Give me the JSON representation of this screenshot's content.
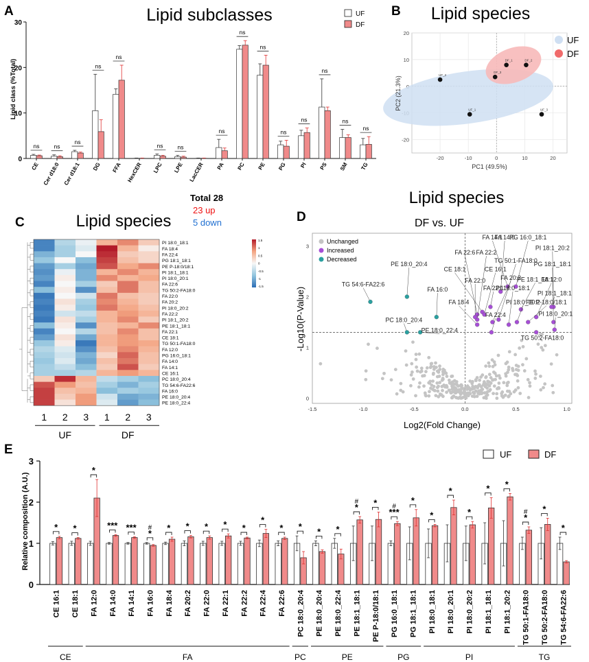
{
  "colors": {
    "uf_fill": "#ffffff",
    "df_fill": "#f08a8a",
    "df_err": "#e03030",
    "axis": "#111111",
    "uf_ellipse": "#cfdff2",
    "df_ellipse": "#f7b9b9",
    "up": "#ee1111",
    "down": "#1f6fd1",
    "unchanged": "#c4c4c4",
    "increased": "#a64fd6",
    "decreased": "#2aa0a0",
    "heat_lo": "#2c6db5",
    "heat_hi": "#b31b2a"
  },
  "panelA": {
    "letter": "A",
    "chart_data": {
      "type": "bar",
      "title": "Lipid subclasses",
      "ylabel": "Lipid class (%Total)",
      "ylim": [
        0,
        30
      ],
      "yticks": [
        0,
        10,
        20,
        30
      ],
      "categories": [
        "CE",
        "Cer d18:0",
        "Cer d18:1",
        "DG",
        "FFA",
        "HexCER",
        "LPC",
        "LPE",
        "LacCER",
        "PA",
        "PC",
        "PE",
        "PG",
        "PI",
        "PS",
        "SM",
        "TG"
      ],
      "series": [
        {
          "name": "UF",
          "values": [
            0.7,
            0.5,
            1.5,
            10.5,
            14.1,
            0.05,
            0.7,
            0.4,
            0.05,
            2.4,
            24.0,
            18.3,
            3.0,
            5.0,
            11.3,
            4.6,
            3.0
          ],
          "errors": [
            0.2,
            0.3,
            0.3,
            8.0,
            1.2,
            0.05,
            0.3,
            0.3,
            0.05,
            1.8,
            0.8,
            2.5,
            0.8,
            1.2,
            6.2,
            1.8,
            1.4
          ]
        },
        {
          "name": "DF",
          "values": [
            0.6,
            0.4,
            1.2,
            5.9,
            17.2,
            0.05,
            0.5,
            0.3,
            0.05,
            1.7,
            24.9,
            20.5,
            2.7,
            5.7,
            10.5,
            4.6,
            3.1
          ],
          "errors": [
            0.15,
            0.2,
            0.2,
            2.6,
            3.3,
            0.05,
            0.2,
            0.2,
            0.05,
            0.6,
            1.0,
            2.2,
            1.3,
            1.0,
            0.8,
            0.6,
            1.7
          ]
        }
      ],
      "annotations": [
        "ns",
        "ns",
        "ns",
        "ns",
        "ns",
        "",
        "ns",
        "ns",
        "",
        "ns",
        "ns",
        "ns",
        "ns",
        "ns",
        "ns",
        "ns",
        "ns"
      ],
      "legend": [
        "UF",
        "DF"
      ]
    }
  },
  "panelB": {
    "letter": "B",
    "chart_data": {
      "type": "scatter",
      "title": "Lipid species",
      "xlabel": "PC1 (49.5%)",
      "ylabel": "PC2 (21.3%)",
      "xlim": [
        -30,
        25
      ],
      "ylim": [
        -25,
        20
      ],
      "xticks": [
        -20,
        -10,
        0,
        10,
        20
      ],
      "yticks": [
        -20,
        -10,
        0,
        10,
        20
      ],
      "series": [
        {
          "name": "UF",
          "points": [
            {
              "x": -20,
              "y": 2.5,
              "label": "UF_2"
            },
            {
              "x": -9.5,
              "y": -10.5,
              "label": "UF_1"
            },
            {
              "x": 16,
              "y": -10.5,
              "label": "UF_3"
            }
          ]
        },
        {
          "name": "DF",
          "points": [
            {
              "x": -0.5,
              "y": 3.5,
              "label": "DF_3"
            },
            {
              "x": 3.5,
              "y": 8,
              "label": "DF_1"
            },
            {
              "x": 10.5,
              "y": 8,
              "label": "DF_2"
            }
          ]
        }
      ],
      "legend": [
        "UF",
        "DF"
      ]
    }
  },
  "panelC": {
    "letter": "C",
    "title": "Lipid species",
    "total": "Total 28",
    "up": "23 up",
    "down": "5 down",
    "chart_data": {
      "type": "heatmap",
      "columns": [
        "1",
        "2",
        "3",
        "1",
        "2",
        "3"
      ],
      "groups": [
        "UF",
        "DF"
      ],
      "colorbar_ticks": [
        "1.5",
        "1",
        "0.5",
        "0",
        "-0.5",
        "-1",
        "-1.5"
      ],
      "rows": [
        "PI 18:0_18:1",
        "FA 18:4",
        "FA 22:4",
        "PG 18:1_18:1",
        "PE P-18:0/18:1",
        "PI 18:1_18:1",
        "PI 18:0_20:1",
        "FA 22:6",
        "TG 50:2-FA18:0",
        "FA 22:0",
        "FA 20:2",
        "PI 18:0_20:2",
        "FA 22:2",
        "PI 18:1_20:2",
        "PE 18:1_18:1",
        "FA 22:1",
        "CE 18:1",
        "TG 50:1-FA18:0",
        "FA 12:0",
        "PG 16:0_18:1",
        "FA 14:0",
        "FA 14:1",
        "CE 16:1",
        "PC 18:0_20:4",
        "TG 54:6-FA22:6",
        "FA 16:0",
        "PE 18:0_20:4",
        "PE 18:0_22:4"
      ],
      "values": [
        [
          -1.3,
          -0.5,
          -0.1,
          0.6,
          0.9,
          0.4
        ],
        [
          -1.3,
          -0.6,
          -0.2,
          1.5,
          0.6,
          0.1
        ],
        [
          -0.9,
          -0.6,
          0.0,
          1.4,
          0.4,
          0.3
        ],
        [
          -0.7,
          0.0,
          -0.8,
          1.3,
          0.5,
          0.3
        ],
        [
          -1.1,
          -0.6,
          -1.0,
          1.2,
          0.7,
          0.9
        ],
        [
          -1.2,
          -0.1,
          -0.9,
          0.6,
          0.9,
          0.6
        ],
        [
          -1.1,
          0.1,
          -0.9,
          0.9,
          0.6,
          0.7
        ],
        [
          -1.3,
          0.0,
          -0.6,
          0.4,
          1.0,
          0.5
        ],
        [
          -0.8,
          0.1,
          -1.2,
          0.5,
          1.0,
          0.5
        ],
        [
          -1.4,
          0.0,
          -0.3,
          1.0,
          0.5,
          0.4
        ],
        [
          -1.3,
          0.2,
          -0.6,
          0.9,
          0.6,
          0.4
        ],
        [
          -1.4,
          0.1,
          -0.7,
          1.0,
          0.7,
          0.5
        ],
        [
          -1.3,
          -0.3,
          -0.4,
          0.6,
          0.8,
          0.6
        ],
        [
          -1.4,
          0.2,
          -0.6,
          0.6,
          0.9,
          0.4
        ],
        [
          -0.8,
          0.1,
          -1.2,
          0.5,
          0.6,
          0.9
        ],
        [
          -1.3,
          0.0,
          -0.5,
          0.5,
          0.9,
          0.5
        ],
        [
          -1.1,
          0.2,
          -1.0,
          0.6,
          0.8,
          0.5
        ],
        [
          -0.7,
          0.1,
          -1.4,
          0.6,
          0.8,
          0.7
        ],
        [
          -0.5,
          -0.2,
          -1.2,
          0.5,
          0.9,
          0.6
        ],
        [
          -0.6,
          -0.3,
          -0.9,
          0.3,
          1.1,
          0.5
        ],
        [
          -0.7,
          -0.2,
          -1.0,
          0.5,
          1.0,
          0.5
        ],
        [
          -0.6,
          -0.4,
          -0.8,
          0.4,
          1.2,
          0.4
        ],
        [
          -0.6,
          -0.6,
          -0.5,
          0.6,
          0.8,
          0.6
        ],
        [
          0.4,
          1.4,
          0.6,
          -0.4,
          -0.6,
          -0.8
        ],
        [
          1.2,
          0.8,
          0.5,
          -0.6,
          -0.9,
          -0.6
        ],
        [
          1.3,
          0.5,
          0.6,
          -0.8,
          -0.6,
          -0.7
        ],
        [
          1.3,
          0.4,
          0.8,
          -0.3,
          -1.0,
          -0.9
        ],
        [
          1.3,
          0.2,
          0.8,
          -0.2,
          -1.1,
          -0.8
        ]
      ]
    }
  },
  "panelD": {
    "letter": "D",
    "title": "Lipid species",
    "subtitle": "DF vs. UF",
    "chart_data": {
      "type": "scatter",
      "xlabel": "Log2(Fold Change)",
      "ylabel": "-Log10(P-Value)",
      "xlim": [
        -1.5,
        1.05
      ],
      "ylim": [
        -0.1,
        3.25
      ],
      "xticks": [
        "-1.5",
        "-1.0",
        "-0.5",
        "0.0",
        "0.5",
        "1.0"
      ],
      "yticks": [
        "0",
        "1",
        "2",
        "3"
      ],
      "threshold": 1.3,
      "legend": [
        "Unchanged",
        "Increased",
        "Decreased"
      ],
      "increased": [
        {
          "label": "FA 22:6",
          "x": 0.12,
          "y": 1.65,
          "lx": 0.0,
          "ly": 2.83
        },
        {
          "label": "FA 14:0",
          "x": 0.35,
          "y": 2.1,
          "lx": 0.39,
          "ly": 3.13
        },
        {
          "label": "FA 14:1",
          "x": 0.42,
          "y": 2.2,
          "lx": 0.27,
          "ly": 3.13
        },
        {
          "label": "PG 16:0_18:1",
          "x": 0.5,
          "y": 2.2,
          "lx": 0.62,
          "ly": 3.13
        },
        {
          "label": "FA 22:2",
          "x": 0.12,
          "y": 1.55,
          "lx": 0.21,
          "ly": 2.83
        },
        {
          "label": "TG 50:1-FA18:0",
          "x": 0.33,
          "y": 1.55,
          "lx": 0.5,
          "ly": 2.67
        },
        {
          "label": "PI 18:1_20:2",
          "x": 0.87,
          "y": 1.8,
          "lx": 0.86,
          "ly": 2.92
        },
        {
          "label": "CE 18:1",
          "x": 0.17,
          "y": 1.7,
          "lx": -0.1,
          "ly": 2.5
        },
        {
          "label": "CE 16:1",
          "x": 0.19,
          "y": 1.65,
          "lx": 0.3,
          "ly": 2.5
        },
        {
          "label": "PG 18:1_18:1",
          "x": 0.87,
          "y": 1.5,
          "lx": 0.86,
          "ly": 2.6
        },
        {
          "label": "FA 20:2",
          "x": 0.27,
          "y": 1.5,
          "lx": 0.45,
          "ly": 2.33
        },
        {
          "label": "PE 18:1_18:1",
          "x": 0.55,
          "y": 1.75,
          "lx": 0.69,
          "ly": 2.3
        },
        {
          "label": "FA 12:0",
          "x": 0.7,
          "y": 1.6,
          "lx": 0.85,
          "ly": 2.3
        },
        {
          "label": "FA 22:0",
          "x": 0.1,
          "y": 1.6,
          "lx": 0.1,
          "ly": 2.28
        },
        {
          "label": "FA 22:1",
          "x": 0.25,
          "y": 1.8,
          "lx": 0.28,
          "ly": 2.13
        },
        {
          "label": "PI 18:0_18:1",
          "x": 0.43,
          "y": 1.45,
          "lx": 0.47,
          "ly": 2.13
        },
        {
          "label": "PI 18:1_18:1",
          "x": 0.85,
          "y": 1.8,
          "lx": 0.88,
          "ly": 2.03
        },
        {
          "label": "PI 18:0_20:2",
          "x": 0.51,
          "y": 1.5,
          "lx": 0.57,
          "ly": 1.85
        },
        {
          "label": "PE P-18:0/18:1",
          "x": 0.62,
          "y": 1.5,
          "lx": 0.8,
          "ly": 1.85
        },
        {
          "label": "FA 18:4",
          "x": 0.12,
          "y": 1.45,
          "lx": -0.06,
          "ly": 1.85
        },
        {
          "label": "FA 22:4",
          "x": 0.26,
          "y": 1.3,
          "lx": 0.3,
          "ly": 1.6
        },
        {
          "label": "PI 18:0_20:1",
          "x": 0.88,
          "y": 1.35,
          "lx": 0.89,
          "ly": 1.62
        },
        {
          "label": "TG 50:2-FA18:0",
          "x": 0.7,
          "y": 1.3,
          "lx": 0.76,
          "ly": 1.15
        }
      ],
      "decreased": [
        {
          "label": "TG 54:6-FA22:6",
          "x": -0.93,
          "y": 1.9,
          "lx": -1.0,
          "ly": 2.2
        },
        {
          "label": "PE 18:0_20:4",
          "x": -0.57,
          "y": 2.0,
          "lx": -0.55,
          "ly": 2.6
        },
        {
          "label": "FA 16:0",
          "x": -0.28,
          "y": 1.6,
          "lx": -0.27,
          "ly": 2.1
        },
        {
          "label": "PC 18:0_20:4",
          "x": -0.57,
          "y": 1.3,
          "lx": -0.6,
          "ly": 1.5
        },
        {
          "label": "PE 18:0_22:4",
          "x": -0.44,
          "y": 1.3,
          "lx": -0.25,
          "ly": 1.3
        }
      ]
    }
  },
  "panelE": {
    "letter": "E",
    "chart_data": {
      "type": "bar",
      "ylabel": "Relative composition (A.U.)",
      "ylim": [
        0,
        3
      ],
      "yticks": [
        "0",
        "1",
        "2",
        "3"
      ],
      "legend": [
        "UF",
        "DF"
      ],
      "categories": [
        "CE 16:1",
        "CE 18:1",
        "FA 12:0",
        "FA 14:0",
        "FA 14:1",
        "FA 16:0",
        "FA 18:4",
        "FA 20:2",
        "FA 22:0",
        "FA 22:1",
        "FA 22:2",
        "FA 22:4",
        "FA 22:6",
        "PC 18:0_20:4",
        "PE 18:0_20:4",
        "PE 18:0_22:4",
        "PE 18:1_18:1",
        "PE P-18:0/18:1",
        "PG 16:0_18:1",
        "PG 18:1_18:1",
        "PI 18:0_18:1",
        "PI 18:0_20:1",
        "PI 18:0_20:2",
        "PI 18:1_18:1",
        "PI 18:1_20:2",
        "TG 50:1-FA18:0",
        "TG 50:2-FA18:0",
        "TG 54:6-FA22:6"
      ],
      "series": [
        {
          "name": "UF",
          "values": [
            1,
            1,
            1,
            1,
            1,
            1,
            1,
            1,
            1,
            1,
            1,
            1,
            1,
            1,
            1,
            1,
            1,
            1,
            1,
            1,
            1,
            1,
            1,
            1,
            1,
            1,
            1,
            1
          ],
          "errors": [
            0.04,
            0.05,
            0.05,
            0.02,
            0.02,
            0.02,
            0.03,
            0.06,
            0.05,
            0.05,
            0.05,
            0.08,
            0.06,
            0.18,
            0.06,
            0.12,
            0.42,
            0.42,
            0.06,
            0.4,
            0.35,
            0.45,
            0.42,
            0.5,
            0.55,
            0.15,
            0.38,
            0.15
          ]
        },
        {
          "name": "DF",
          "values": [
            1.14,
            1.12,
            2.1,
            1.19,
            1.14,
            0.95,
            1.1,
            1.16,
            1.14,
            1.18,
            1.13,
            1.24,
            1.12,
            0.65,
            0.8,
            0.74,
            1.57,
            1.58,
            1.48,
            1.62,
            1.43,
            1.87,
            1.45,
            1.86,
            2.13,
            1.32,
            1.46,
            0.55
          ],
          "errors": [
            0.03,
            0.02,
            0.45,
            0.02,
            0.02,
            0.02,
            0.05,
            0.03,
            0.04,
            0.05,
            0.02,
            0.1,
            0.03,
            0.15,
            0.04,
            0.12,
            0.08,
            0.18,
            0.05,
            0.2,
            0.03,
            0.18,
            0.08,
            0.25,
            0.08,
            0.08,
            0.15,
            0.03
          ]
        }
      ],
      "stars": [
        "*",
        "*",
        "*",
        "***",
        "***",
        "*",
        "*",
        "*",
        "*",
        "*",
        "*",
        "*",
        "*",
        "*",
        "*",
        "*",
        "*",
        "*",
        "***",
        "*",
        "*",
        "*",
        "*",
        "*",
        "*",
        "*",
        "*",
        "*"
      ],
      "hash": [
        "",
        "",
        "",
        "",
        "",
        "#",
        "",
        "",
        "",
        "",
        "",
        "",
        "",
        "",
        "",
        "",
        "#",
        "",
        "#",
        "",
        "",
        "",
        "",
        "",
        "",
        "#",
        "",
        ""
      ],
      "groups": [
        {
          "label": "CE",
          "from": 0,
          "to": 1
        },
        {
          "label": "FA",
          "from": 2,
          "to": 12
        },
        {
          "label": "PC",
          "from": 13,
          "to": 13
        },
        {
          "label": "PE",
          "from": 14,
          "to": 17
        },
        {
          "label": "PG",
          "from": 18,
          "to": 19
        },
        {
          "label": "PI",
          "from": 20,
          "to": 24
        },
        {
          "label": "TG",
          "from": 25,
          "to": 27
        }
      ]
    }
  }
}
